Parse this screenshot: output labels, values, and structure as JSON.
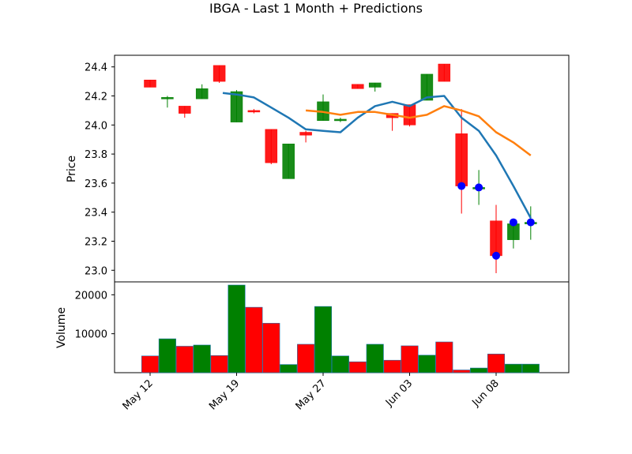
{
  "chart_data": {
    "type": "candlestick",
    "title": "IBGA - Last 1 Month + Predictions",
    "price_panel": {
      "ylabel": "Price",
      "ylim": [
        22.92,
        24.48
      ],
      "yticks": [
        "23.0",
        "23.2",
        "23.4",
        "23.6",
        "23.8",
        "24.0",
        "24.2",
        "24.4"
      ],
      "yticks_values": [
        23.0,
        23.2,
        23.4,
        23.6,
        23.8,
        24.0,
        24.2,
        24.4
      ]
    },
    "volume_panel": {
      "ylabel": "Volume",
      "ylim": [
        0,
        22500
      ],
      "yticks": [
        "10000",
        "20000"
      ],
      "yticks_values": [
        10000,
        20000
      ]
    },
    "xticks": [
      {
        "label": "May 12",
        "index": 0
      },
      {
        "label": "May 19",
        "index": 5
      },
      {
        "label": "May 27",
        "index": 10
      },
      {
        "label": "Jun 03",
        "index": 15
      },
      {
        "label": "Jun 08",
        "index": 20
      }
    ],
    "candles": [
      {
        "open": 24.31,
        "high": 24.31,
        "low": 24.26,
        "close": 24.26,
        "volume": 4300
      },
      {
        "open": 24.18,
        "high": 24.2,
        "low": 24.12,
        "close": 24.19,
        "volume": 8700
      },
      {
        "open": 24.13,
        "high": 24.13,
        "low": 24.05,
        "close": 24.08,
        "volume": 6800
      },
      {
        "open": 24.18,
        "high": 24.28,
        "low": 24.18,
        "close": 24.25,
        "volume": 7100
      },
      {
        "open": 24.41,
        "high": 24.41,
        "low": 24.29,
        "close": 24.3,
        "volume": 4400
      },
      {
        "open": 24.02,
        "high": 24.24,
        "low": 24.02,
        "close": 24.23,
        "volume": 22500
      },
      {
        "open": 24.1,
        "high": 24.11,
        "low": 24.08,
        "close": 24.09,
        "volume": 16800
      },
      {
        "open": 23.97,
        "high": 23.97,
        "low": 23.73,
        "close": 23.74,
        "volume": 12700
      },
      {
        "open": 23.63,
        "high": 23.87,
        "low": 23.63,
        "close": 23.87,
        "volume": 2100
      },
      {
        "open": 23.95,
        "high": 23.96,
        "low": 23.88,
        "close": 23.93,
        "volume": 7300
      },
      {
        "open": 24.03,
        "high": 24.21,
        "low": 24.03,
        "close": 24.16,
        "volume": 17000
      },
      {
        "open": 24.03,
        "high": 24.05,
        "low": 24.02,
        "close": 24.04,
        "volume": 4300
      },
      {
        "open": 24.28,
        "high": 24.28,
        "low": 24.25,
        "close": 24.25,
        "volume": 2800
      },
      {
        "open": 24.26,
        "high": 24.29,
        "low": 24.23,
        "close": 24.29,
        "volume": 7300
      },
      {
        "open": 24.08,
        "high": 24.08,
        "low": 23.96,
        "close": 24.05,
        "volume": 3200
      },
      {
        "open": 24.14,
        "high": 24.14,
        "low": 23.99,
        "close": 24.0,
        "volume": 6900
      },
      {
        "open": 24.17,
        "high": 24.35,
        "low": 24.17,
        "close": 24.35,
        "volume": 4500
      },
      {
        "open": 24.42,
        "high": 24.42,
        "low": 24.3,
        "close": 24.3,
        "volume": 7900
      },
      {
        "open": 23.94,
        "high": 24.11,
        "low": 23.39,
        "close": 23.58,
        "volume": 700
      },
      {
        "open": 23.57,
        "high": 23.69,
        "low": 23.45,
        "close": 23.57,
        "volume": 1200
      },
      {
        "open": 23.34,
        "high": 23.45,
        "low": 22.98,
        "close": 23.1,
        "volume": 4800
      },
      {
        "open": 23.21,
        "high": 23.35,
        "low": 23.15,
        "close": 23.32,
        "volume": 2200
      },
      {
        "open": 23.33,
        "high": 23.44,
        "low": 23.21,
        "close": 23.33,
        "volume": 2200
      }
    ],
    "ma_blue": [
      {
        "index": 4.2,
        "value": 24.22
      },
      {
        "index": 5,
        "value": 24.21
      },
      {
        "index": 6,
        "value": 24.19
      },
      {
        "index": 7,
        "value": 24.12
      },
      {
        "index": 8,
        "value": 24.05
      },
      {
        "index": 9,
        "value": 23.97
      },
      {
        "index": 10,
        "value": 23.96
      },
      {
        "index": 11,
        "value": 23.95
      },
      {
        "index": 12,
        "value": 24.05
      },
      {
        "index": 13,
        "value": 24.13
      },
      {
        "index": 14,
        "value": 24.16
      },
      {
        "index": 15,
        "value": 24.13
      },
      {
        "index": 16,
        "value": 24.19
      },
      {
        "index": 17,
        "value": 24.2
      },
      {
        "index": 18,
        "value": 24.05
      },
      {
        "index": 19,
        "value": 23.96
      },
      {
        "index": 20,
        "value": 23.79
      },
      {
        "index": 21,
        "value": 23.58
      },
      {
        "index": 22,
        "value": 23.36
      }
    ],
    "ma_orange": [
      {
        "index": 9,
        "value": 24.1
      },
      {
        "index": 10,
        "value": 24.09
      },
      {
        "index": 11,
        "value": 24.07
      },
      {
        "index": 12,
        "value": 24.09
      },
      {
        "index": 13,
        "value": 24.09
      },
      {
        "index": 14,
        "value": 24.07
      },
      {
        "index": 15,
        "value": 24.05
      },
      {
        "index": 16,
        "value": 24.07
      },
      {
        "index": 17,
        "value": 24.13
      },
      {
        "index": 18,
        "value": 24.1
      },
      {
        "index": 19,
        "value": 24.06
      },
      {
        "index": 20,
        "value": 23.95
      },
      {
        "index": 21,
        "value": 23.88
      },
      {
        "index": 22,
        "value": 23.79
      }
    ],
    "predictions": [
      {
        "index": 18,
        "value": 23.58
      },
      {
        "index": 19,
        "value": 23.57
      },
      {
        "index": 20,
        "value": 23.1
      },
      {
        "index": 21,
        "value": 23.33
      },
      {
        "index": 22,
        "value": 23.33
      }
    ],
    "colors": {
      "up": "#008000",
      "down": "#ff0000",
      "ma_blue": "#1f77b4",
      "ma_orange": "#ff7f0e",
      "prediction": "#0000ff"
    }
  }
}
